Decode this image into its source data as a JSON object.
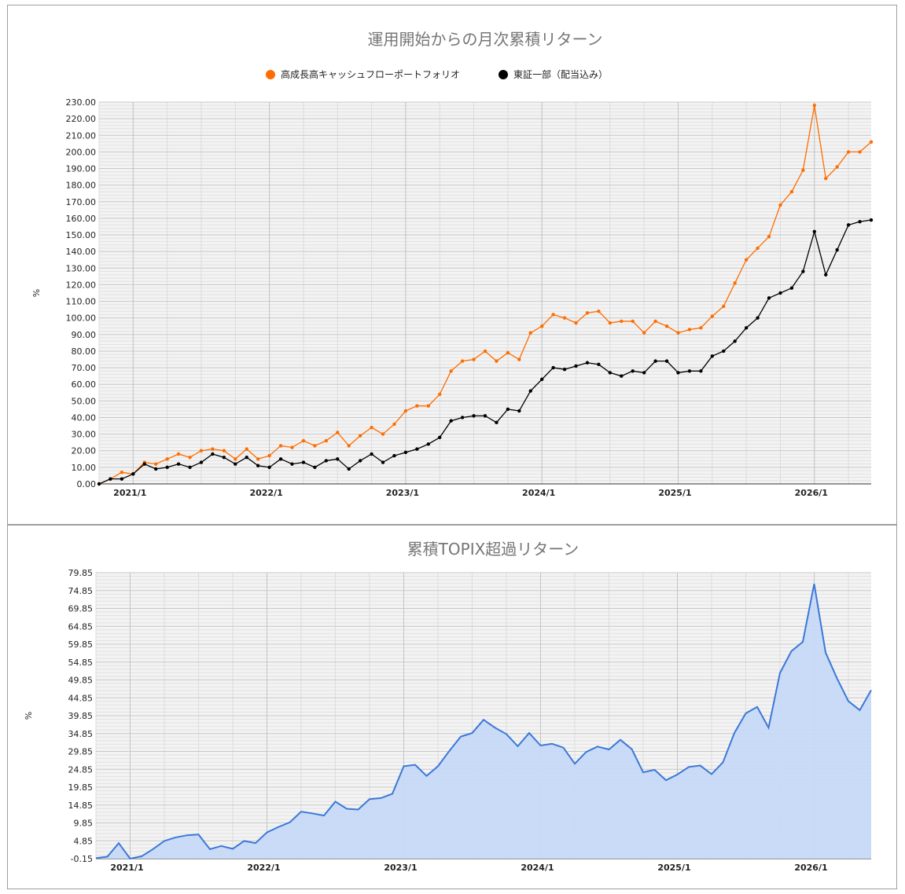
{
  "chart_data": [
    {
      "type": "line",
      "title": "運用開始からの月次累積リターン",
      "ylabel": "%",
      "xlabel": "",
      "ylim": [
        0,
        230
      ],
      "yticks": [
        "0.00",
        "10.00",
        "20.00",
        "30.00",
        "40.00",
        "50.00",
        "60.00",
        "70.00",
        "80.00",
        "90.00",
        "100.00",
        "110.00",
        "120.00",
        "130.00",
        "140.00",
        "150.00",
        "160.00",
        "170.00",
        "180.00",
        "190.00",
        "200.00",
        "210.00",
        "220.00",
        "230.00"
      ],
      "x_tick_labels": [
        "2021/1",
        "2022/1",
        "2023/1",
        "2024/1",
        "2025/1",
        "2026/1"
      ],
      "grid": true,
      "legend_position": "top",
      "start_month": "2020/10",
      "series": [
        {
          "name": "高成長高キャッシュフローポートフォリオ",
          "color": "#ff6d00",
          "values": [
            0,
            3,
            7,
            6,
            13,
            12,
            15,
            18,
            16,
            20,
            21,
            20,
            15,
            21,
            15,
            17,
            23,
            22,
            26,
            23,
            26,
            31,
            23,
            29,
            34,
            30,
            36,
            44,
            47,
            47,
            54,
            68,
            74,
            75,
            80,
            74,
            79,
            75,
            91,
            95,
            102,
            100,
            97,
            103,
            104,
            97,
            98,
            98,
            91,
            98,
            95,
            91,
            93,
            94,
            101,
            107,
            121,
            135,
            142,
            149,
            168,
            176,
            189,
            228,
            184,
            191,
            200,
            200,
            206
          ]
        },
        {
          "name": "東証一部（配当込み）",
          "color": "#000000",
          "values": [
            0,
            3,
            3,
            6,
            12,
            9,
            10,
            12,
            10,
            13,
            18,
            16,
            12,
            16,
            11,
            10,
            15,
            12,
            13,
            10,
            14,
            15,
            9,
            14,
            18,
            13,
            17,
            19,
            21,
            24,
            28,
            38,
            40,
            41,
            41,
            37,
            45,
            44,
            56,
            63,
            70,
            69,
            71,
            73,
            72,
            67,
            65,
            68,
            67,
            74,
            74,
            67,
            68,
            68,
            77,
            80,
            86,
            94,
            100,
            112,
            115,
            118,
            128,
            152,
            126,
            141,
            156,
            158,
            159
          ]
        }
      ]
    },
    {
      "type": "area",
      "title": "累積TOPIX超過リターン",
      "ylabel": "%",
      "xlabel": "",
      "ylim": [
        -0.15,
        79.85
      ],
      "yticks": [
        "-0.15",
        "4.85",
        "9.85",
        "14.85",
        "19.85",
        "24.85",
        "29.85",
        "34.85",
        "39.85",
        "44.85",
        "49.85",
        "54.85",
        "59.85",
        "64.85",
        "69.85",
        "74.85",
        "79.85"
      ],
      "x_tick_labels": [
        "2021/1",
        "2022/1",
        "2023/1",
        "2024/1",
        "2025/1",
        "2026/1"
      ],
      "grid": true,
      "start_month": "2020/10",
      "series": [
        {
          "name": "",
          "color": "#3c78d8",
          "fill": "#c6d9f5",
          "values": [
            0,
            0.4,
            4.2,
            -0.15,
            0.5,
            2.5,
            4.8,
            5.8,
            6.4,
            6.6,
            2.5,
            3.4,
            2.6,
            4.8,
            4.2,
            7.2,
            8.7,
            10.0,
            13.0,
            12.5,
            11.9,
            15.8,
            13.8,
            13.6,
            16.5,
            16.8,
            18.0,
            25.7,
            26.1,
            23.0,
            25.7,
            30.0,
            34.0,
            35.0,
            38.7,
            36.5,
            34.7,
            31.3,
            35.0,
            31.5,
            32.0,
            30.9,
            26.4,
            29.7,
            31.2,
            30.4,
            33.1,
            30.5,
            24.0,
            24.7,
            21.8,
            23.4,
            25.5,
            25.9,
            23.5,
            26.8,
            35.0,
            40.5,
            42.3,
            36.5,
            51.8,
            57.9,
            60.5,
            76.7,
            57.5,
            50.3,
            43.9,
            41.4,
            47.0
          ]
        }
      ]
    }
  ]
}
